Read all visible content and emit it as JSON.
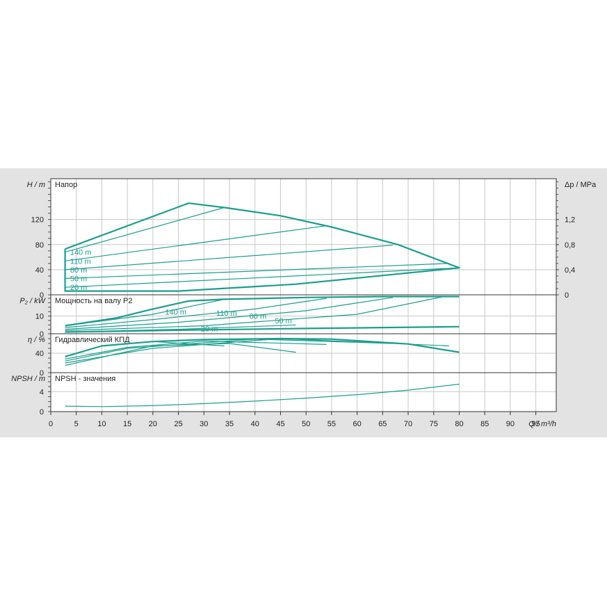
{
  "colors": {
    "curve": "#1a9e8e",
    "background": "#e3e3e3",
    "plot_bg": "#ffffff",
    "grid": "#c8c8c8"
  },
  "chart_data": {
    "type": "line",
    "x_axis": {
      "label": "Q / m³/h",
      "ticks": [
        0,
        5,
        10,
        15,
        20,
        25,
        30,
        35,
        40,
        45,
        50,
        55,
        60,
        65,
        70,
        75,
        80,
        85,
        90,
        95
      ],
      "range": [
        0,
        99
      ]
    },
    "panels": [
      {
        "key": "head",
        "title": "Напор",
        "ylabel": "H / m",
        "ylabel_right": "Δp / MPa",
        "yrange": [
          0,
          185
        ],
        "yticks": [
          0,
          40,
          80,
          120
        ],
        "yticks_right": [
          {
            "value": 0,
            "label": "0"
          },
          {
            "value": 40,
            "label": "0,4"
          },
          {
            "value": 80,
            "label": "0,8"
          },
          {
            "value": 120,
            "label": "1,2"
          }
        ],
        "envelope": {
          "x": [
            2.8,
            27,
            34,
            45,
            55,
            68,
            80,
            48,
            25,
            2.8,
            2.8
          ],
          "y": [
            73,
            146,
            139,
            126,
            108,
            80,
            43,
            17,
            6,
            6,
            73
          ]
        },
        "series": [
          {
            "label": "140 m",
            "x": [
              2.8,
              34
            ],
            "y": [
              68,
              139
            ]
          },
          {
            "label": "110 m",
            "x": [
              2.8,
              54
            ],
            "y": [
              54,
              110
            ]
          },
          {
            "label": "80 m",
            "x": [
              2.8,
              67
            ],
            "y": [
              40,
              79
            ]
          },
          {
            "label": "50 m",
            "x": [
              2.8,
              78
            ],
            "y": [
              26,
              50
            ]
          },
          {
            "label": "20 m",
            "x": [
              2.8,
              80
            ],
            "y": [
              12,
              43
            ]
          }
        ]
      },
      {
        "key": "power",
        "title": "Мощность на валу P2",
        "ylabel": "P₂ / kW",
        "yrange": [
          0,
          22
        ],
        "yticks": [
          0,
          10
        ],
        "envelope_top": {
          "x": [
            2.8,
            13,
            20,
            27,
            34,
            50,
            65,
            80
          ],
          "y": [
            4.5,
            9,
            14,
            18.5,
            19.5,
            20.5,
            21,
            21
          ]
        },
        "envelope_bottom": {
          "x": [
            2.8,
            25,
            50,
            80
          ],
          "y": [
            1,
            2,
            3,
            4
          ]
        },
        "series": [
          {
            "label": "140 m",
            "x": [
              2.8,
              20,
              34
            ],
            "y": [
              4.5,
              11,
              19.5
            ]
          },
          {
            "label": "110 m",
            "x": [
              2.8,
              20,
              40,
              54
            ],
            "y": [
              3.5,
              8,
              14,
              20
            ]
          },
          {
            "label": "80 m",
            "x": [
              2.8,
              25,
              50,
              67
            ],
            "y": [
              2.5,
              6.5,
              13,
              20.5
            ]
          },
          {
            "label": "50 m",
            "x": [
              2.8,
              30,
              60,
              77
            ],
            "y": [
              1.8,
              4.5,
              11,
              21
            ]
          },
          {
            "label": "20 m",
            "x": [
              2.8,
              25,
              48
            ],
            "y": [
              1,
              2.5,
              5
            ]
          }
        ]
      },
      {
        "key": "efficiency",
        "title": "Гидравлический КПД",
        "ylabel": "η / %",
        "yrange": [
          0,
          80
        ],
        "yticks": [
          0,
          40
        ],
        "envelope": {
          "x": [
            2.8,
            10,
            20,
            30,
            45,
            55,
            70,
            80
          ],
          "y": [
            33,
            55,
            64,
            68,
            70,
            69,
            59,
            42
          ]
        },
        "series": [
          {
            "label": "140 m",
            "x": [
              2.8,
              10,
              20,
              34
            ],
            "y": [
              33,
              55,
              64,
              55
            ]
          },
          {
            "label": "110 m",
            "x": [
              2.8,
              15,
              30,
              54
            ],
            "y": [
              28,
              52,
              65,
              58
            ]
          },
          {
            "label": "80 m",
            "x": [
              2.8,
              15,
              40,
              67
            ],
            "y": [
              24,
              50,
              69,
              60
            ]
          },
          {
            "label": "50 m",
            "x": [
              2.8,
              20,
              45,
              78
            ],
            "y": [
              20,
              50,
              70,
              55
            ]
          },
          {
            "label": "20 m",
            "x": [
              2.8,
              20,
              35,
              48
            ],
            "y": [
              15,
              55,
              60,
              42
            ]
          }
        ]
      },
      {
        "key": "npsh",
        "title": "NPSH - значения",
        "ylabel": "NPSH / m",
        "yrange": [
          0,
          7.8
        ],
        "yticks": [
          0,
          4
        ],
        "series": [
          {
            "label": "",
            "x": [
              2.8,
              10,
              20,
              30,
              40,
              50,
              60,
              70,
              80
            ],
            "y": [
              1.1,
              1,
              1.2,
              1.6,
              2.1,
              2.7,
              3.4,
              4.3,
              5.5
            ]
          }
        ]
      }
    ]
  }
}
